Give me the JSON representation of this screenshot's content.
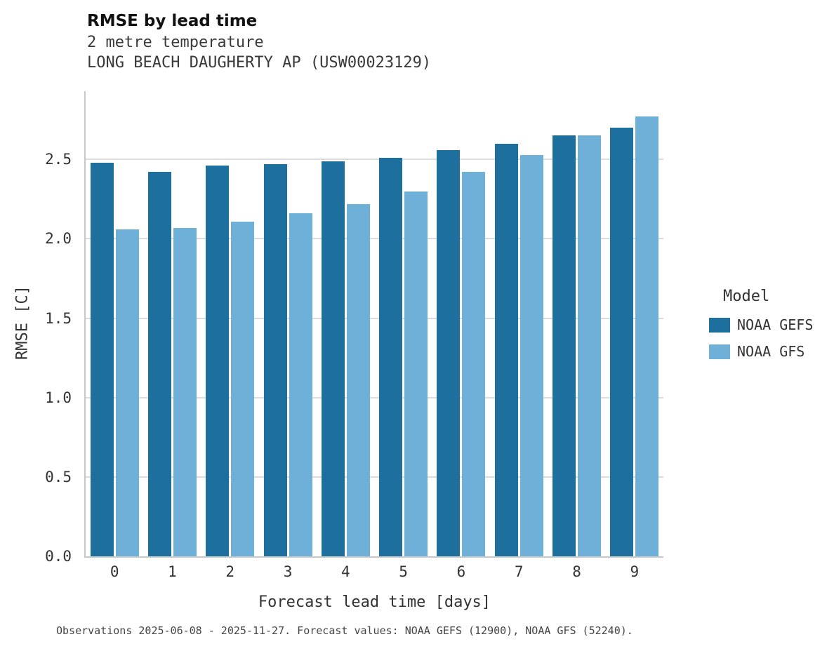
{
  "header": {
    "title": "RMSE by lead time",
    "subtitle1": "2 metre temperature",
    "subtitle2": "LONG BEACH DAUGHERTY AP (USW00023129)"
  },
  "caption": "Observations 2025-06-08 - 2025-11-27. Forecast values: NOAA GEFS (12900), NOAA GFS (52240).",
  "chart_data": {
    "type": "bar",
    "title": "RMSE by lead time",
    "subtitle": "2 metre temperature — LONG BEACH DAUGHERTY AP (USW00023129)",
    "xlabel": "Forecast lead time [days]",
    "ylabel": "RMSE [C]",
    "categories": [
      "0",
      "1",
      "2",
      "3",
      "4",
      "5",
      "6",
      "7",
      "8",
      "9"
    ],
    "series": [
      {
        "name": "NOAA GEFS",
        "color": "#1d6f9e",
        "values": [
          2.48,
          2.42,
          2.46,
          2.47,
          2.49,
          2.51,
          2.56,
          2.6,
          2.65,
          2.7
        ]
      },
      {
        "name": "NOAA GFS",
        "color": "#6fb0d8",
        "values": [
          2.06,
          2.07,
          2.11,
          2.16,
          2.22,
          2.3,
          2.42,
          2.53,
          2.65,
          2.77
        ]
      }
    ],
    "ylim": [
      0,
      2.93
    ],
    "yticks": [
      {
        "value": 0.0,
        "label": "0.0"
      },
      {
        "value": 0.5,
        "label": "0.5"
      },
      {
        "value": 1.0,
        "label": "1.0"
      },
      {
        "value": 1.5,
        "label": "1.5"
      },
      {
        "value": 2.0,
        "label": "2.0"
      },
      {
        "value": 2.5,
        "label": "2.5"
      }
    ],
    "grid": true,
    "legend": {
      "title": "Model",
      "position": "right"
    }
  }
}
